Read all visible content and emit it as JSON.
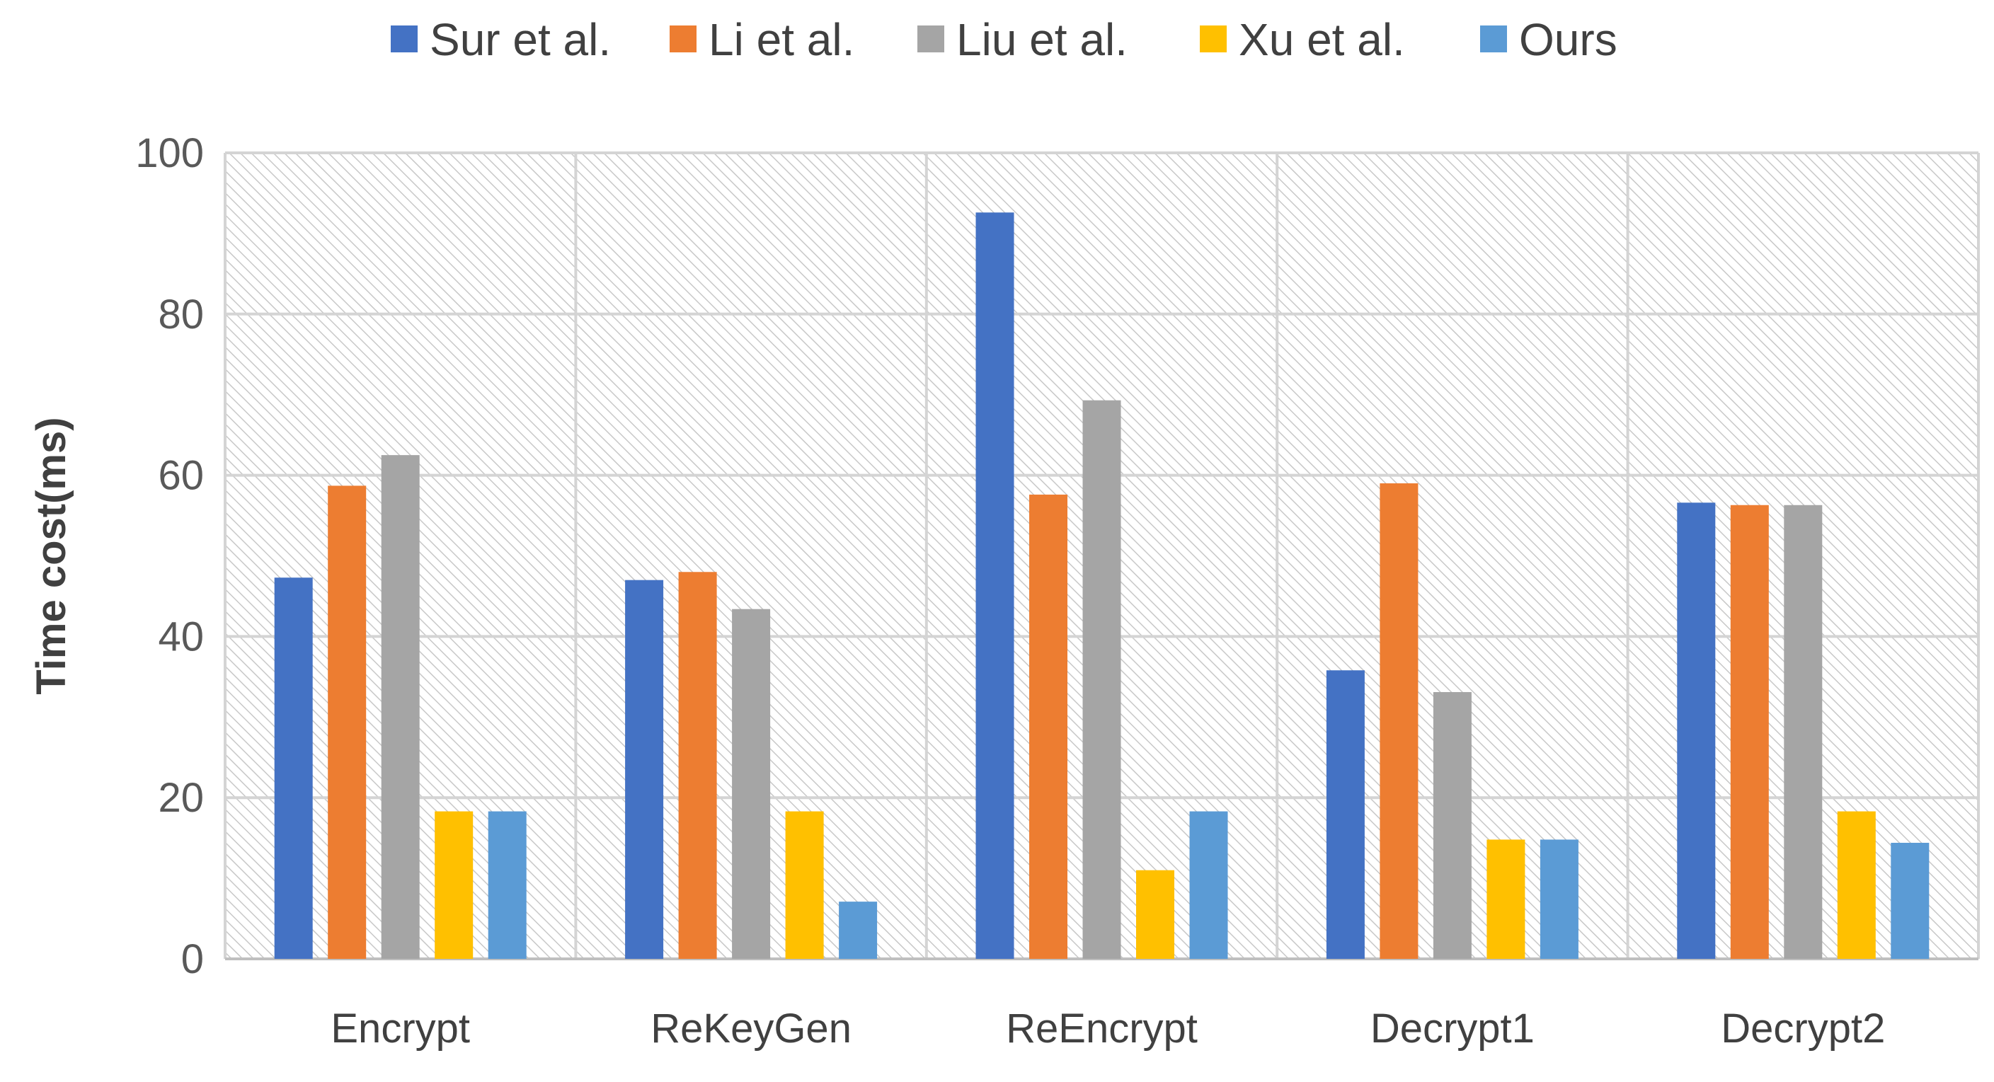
{
  "chart_data": {
    "type": "bar",
    "title": "",
    "xlabel": "",
    "ylabel": "Time cost(ms)",
    "ylim": [
      0,
      100
    ],
    "yticks": [
      0,
      20,
      40,
      60,
      80,
      100
    ],
    "grid": true,
    "legend_position": "top",
    "categories": [
      "Encrypt",
      "ReKeyGen",
      "ReEncrypt",
      "Decrypt1",
      "Decrypt2"
    ],
    "series": [
      {
        "name": "Sur et al.",
        "color": "#4472C4",
        "values": [
          47.3,
          47.0,
          92.6,
          35.8,
          56.6
        ]
      },
      {
        "name": "Li et al.",
        "color": "#ED7D31",
        "values": [
          58.7,
          48.0,
          57.6,
          59.0,
          56.3
        ]
      },
      {
        "name": "Liu et al.",
        "color": "#A5A5A5",
        "values": [
          62.5,
          43.4,
          69.3,
          33.1,
          56.3
        ]
      },
      {
        "name": "Xu et al.",
        "color": "#FFC000",
        "values": [
          18.3,
          18.3,
          11.0,
          14.8,
          18.3
        ]
      },
      {
        "name": "Ours",
        "color": "#5B9BD5",
        "values": [
          18.3,
          7.1,
          18.3,
          14.8,
          14.4
        ]
      }
    ]
  }
}
